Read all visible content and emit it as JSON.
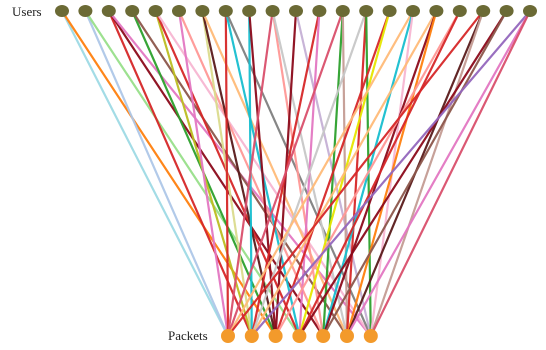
{
  "labels": {
    "users": "Users",
    "packets": "Packets"
  },
  "colors": {
    "user_node": "#6b6a35",
    "packet_node": "#f39a2b",
    "edge_palette": [
      "#1f77b4",
      "#aec7e8",
      "#ff7f0e",
      "#ffbb78",
      "#2ca02c",
      "#98df8a",
      "#d62728",
      "#ff9896",
      "#9467bd",
      "#c5b0d5",
      "#8c564b",
      "#c49c94",
      "#e377c2",
      "#f7b6d2",
      "#7f7f7f",
      "#c7c7c7",
      "#bcbd22",
      "#dbdb8d",
      "#17becf",
      "#9edae5",
      "#8b0a1a",
      "#e6e600",
      "#5a1a1a",
      "#d94f6b"
    ]
  },
  "graph": {
    "user_count": 21,
    "packet_count": 7,
    "edges": [
      [
        0,
        0,
        19
      ],
      [
        0,
        2,
        2
      ],
      [
        1,
        0,
        1
      ],
      [
        1,
        3,
        5
      ],
      [
        2,
        1,
        6
      ],
      [
        2,
        4,
        20
      ],
      [
        2,
        6,
        12
      ],
      [
        3,
        2,
        4
      ],
      [
        3,
        5,
        10
      ],
      [
        4,
        1,
        16
      ],
      [
        4,
        3,
        6
      ],
      [
        4,
        6,
        13
      ],
      [
        5,
        0,
        12
      ],
      [
        5,
        4,
        7
      ],
      [
        6,
        1,
        17
      ],
      [
        6,
        2,
        22
      ],
      [
        6,
        5,
        3
      ],
      [
        7,
        0,
        6
      ],
      [
        7,
        3,
        18
      ],
      [
        7,
        6,
        14
      ],
      [
        8,
        1,
        18
      ],
      [
        8,
        2,
        20
      ],
      [
        9,
        0,
        23
      ],
      [
        9,
        4,
        7
      ],
      [
        9,
        5,
        15
      ],
      [
        10,
        2,
        20
      ],
      [
        10,
        6,
        9
      ],
      [
        11,
        1,
        6
      ],
      [
        11,
        3,
        12
      ],
      [
        12,
        0,
        23
      ],
      [
        12,
        4,
        4
      ],
      [
        12,
        5,
        11
      ],
      [
        13,
        1,
        15
      ],
      [
        13,
        5,
        6
      ],
      [
        13,
        6,
        4
      ],
      [
        14,
        2,
        6
      ],
      [
        14,
        3,
        21
      ],
      [
        15,
        0,
        3
      ],
      [
        15,
        4,
        18
      ],
      [
        15,
        6,
        13
      ],
      [
        16,
        1,
        3
      ],
      [
        16,
        4,
        20
      ],
      [
        16,
        5,
        2
      ],
      [
        17,
        2,
        7
      ],
      [
        17,
        3,
        6
      ],
      [
        18,
        0,
        6
      ],
      [
        18,
        5,
        22
      ],
      [
        18,
        6,
        11
      ],
      [
        19,
        3,
        20
      ],
      [
        19,
        4,
        10
      ],
      [
        20,
        1,
        8
      ],
      [
        20,
        5,
        12
      ],
      [
        20,
        6,
        23
      ]
    ]
  }
}
